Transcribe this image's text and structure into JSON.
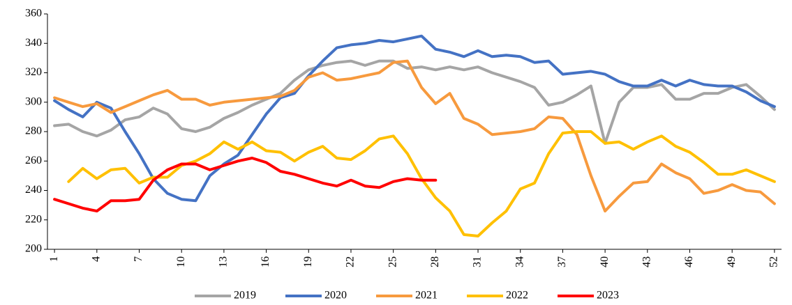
{
  "chart_data": {
    "type": "line",
    "x": [
      1,
      2,
      3,
      4,
      5,
      6,
      7,
      8,
      9,
      10,
      11,
      12,
      13,
      14,
      15,
      16,
      17,
      18,
      19,
      20,
      21,
      22,
      23,
      24,
      25,
      26,
      27,
      28,
      29,
      30,
      31,
      32,
      33,
      34,
      35,
      36,
      37,
      38,
      39,
      40,
      41,
      42,
      43,
      44,
      45,
      46,
      47,
      48,
      49,
      50,
      51,
      52
    ],
    "xlim": [
      0.5,
      52.5
    ],
    "xticks": [
      1,
      4,
      7,
      10,
      13,
      16,
      19,
      22,
      25,
      28,
      31,
      34,
      37,
      40,
      43,
      46,
      49,
      52
    ],
    "ylim": [
      200,
      360
    ],
    "yticks": [
      200,
      220,
      240,
      260,
      280,
      300,
      320,
      340,
      360
    ],
    "grid": false,
    "legend": "bottom",
    "series": [
      {
        "name": "2019",
        "color": "#a5a5a5",
        "values": [
          284,
          285,
          280,
          277,
          281,
          288,
          290,
          296,
          292,
          282,
          280,
          283,
          289,
          293,
          298,
          302,
          306,
          315,
          322,
          325,
          327,
          328,
          325,
          328,
          328,
          323,
          324,
          322,
          324,
          322,
          324,
          320,
          317,
          314,
          310,
          298,
          300,
          305,
          311,
          272,
          300,
          310,
          310,
          312,
          302,
          302,
          306,
          306,
          310,
          312,
          304,
          295
        ]
      },
      {
        "name": "2020",
        "color": "#4472c4",
        "values": [
          301,
          295,
          290,
          300,
          296,
          280,
          265,
          248,
          238,
          234,
          233,
          250,
          258,
          264,
          278,
          292,
          303,
          306,
          318,
          328,
          337,
          339,
          340,
          342,
          341,
          343,
          345,
          336,
          334,
          331,
          335,
          331,
          332,
          331,
          327,
          328,
          319,
          320,
          321,
          319,
          314,
          311,
          311,
          315,
          311,
          315,
          312,
          311,
          311,
          307,
          301,
          297
        ]
      },
      {
        "name": "2021",
        "color": "#f79a3e",
        "values": [
          303,
          300,
          297,
          299,
          293,
          297,
          301,
          305,
          308,
          302,
          302,
          298,
          300,
          301,
          302,
          303,
          304,
          308,
          317,
          320,
          315,
          316,
          318,
          320,
          327,
          328,
          310,
          299,
          306,
          289,
          285,
          278,
          279,
          280,
          282,
          290,
          289,
          278,
          250,
          226,
          236,
          245,
          246,
          258,
          252,
          248,
          238,
          240,
          244,
          240,
          239,
          231
        ]
      },
      {
        "name": "2022",
        "color": "#ffc000",
        "values": [
          null,
          246,
          255,
          248,
          254,
          255,
          245,
          249,
          249,
          257,
          260,
          265,
          273,
          268,
          273,
          267,
          266,
          260,
          266,
          270,
          262,
          261,
          267,
          275,
          277,
          265,
          248,
          235,
          226,
          210,
          209,
          218,
          226,
          241,
          245,
          265,
          279,
          280,
          280,
          272,
          273,
          268,
          273,
          277,
          270,
          266,
          259,
          251,
          251,
          254,
          250,
          246
        ]
      },
      {
        "name": "2023",
        "color": "#ff0000",
        "values": [
          234,
          231,
          228,
          226,
          233,
          233,
          234,
          247,
          254,
          258,
          258,
          254,
          257,
          260,
          262,
          259,
          253,
          251,
          248,
          245,
          243,
          247,
          243,
          242,
          246,
          248,
          247,
          247,
          null,
          null,
          null,
          null,
          null,
          null,
          null,
          null,
          null,
          null,
          null,
          null,
          null,
          null,
          null,
          null,
          null,
          null,
          null,
          null,
          null,
          null,
          null,
          null
        ]
      }
    ]
  }
}
